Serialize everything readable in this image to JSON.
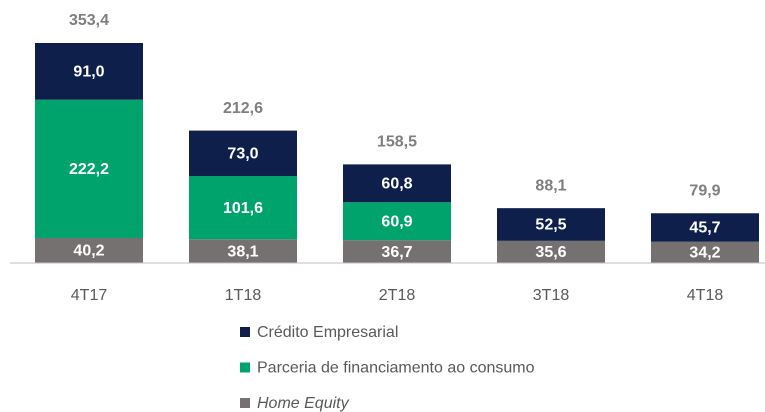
{
  "chart_data": {
    "type": "stacked_bar",
    "categories": [
      "4T17",
      "1T18",
      "2T18",
      "3T18",
      "4T18"
    ],
    "series": [
      {
        "name": "Crédito Empresarial",
        "color": "#0f1f4b",
        "values": [
          91.0,
          73.0,
          60.8,
          52.5,
          45.7
        ],
        "value_labels": [
          "91,0",
          "73,0",
          "60,8",
          "52,5",
          "45,7"
        ]
      },
      {
        "name": "Parceria de financiamento ao consumo",
        "color": "#00a36c",
        "values": [
          222.2,
          101.6,
          60.9,
          null,
          null
        ],
        "value_labels": [
          "222,2",
          "101,6",
          "60,9",
          null,
          null
        ]
      },
      {
        "name": "Home Equity",
        "color": "#767171",
        "values": [
          40.2,
          38.1,
          36.7,
          35.6,
          34.2
        ],
        "value_labels": [
          "40,2",
          "38,1",
          "36,7",
          "35,6",
          "34,2"
        ]
      }
    ],
    "totals": {
      "values": [
        353.4,
        212.6,
        158.5,
        88.1,
        79.9
      ],
      "value_labels": [
        "353,4",
        "212,6",
        "158,5",
        "88,1",
        "79,9"
      ]
    }
  }
}
